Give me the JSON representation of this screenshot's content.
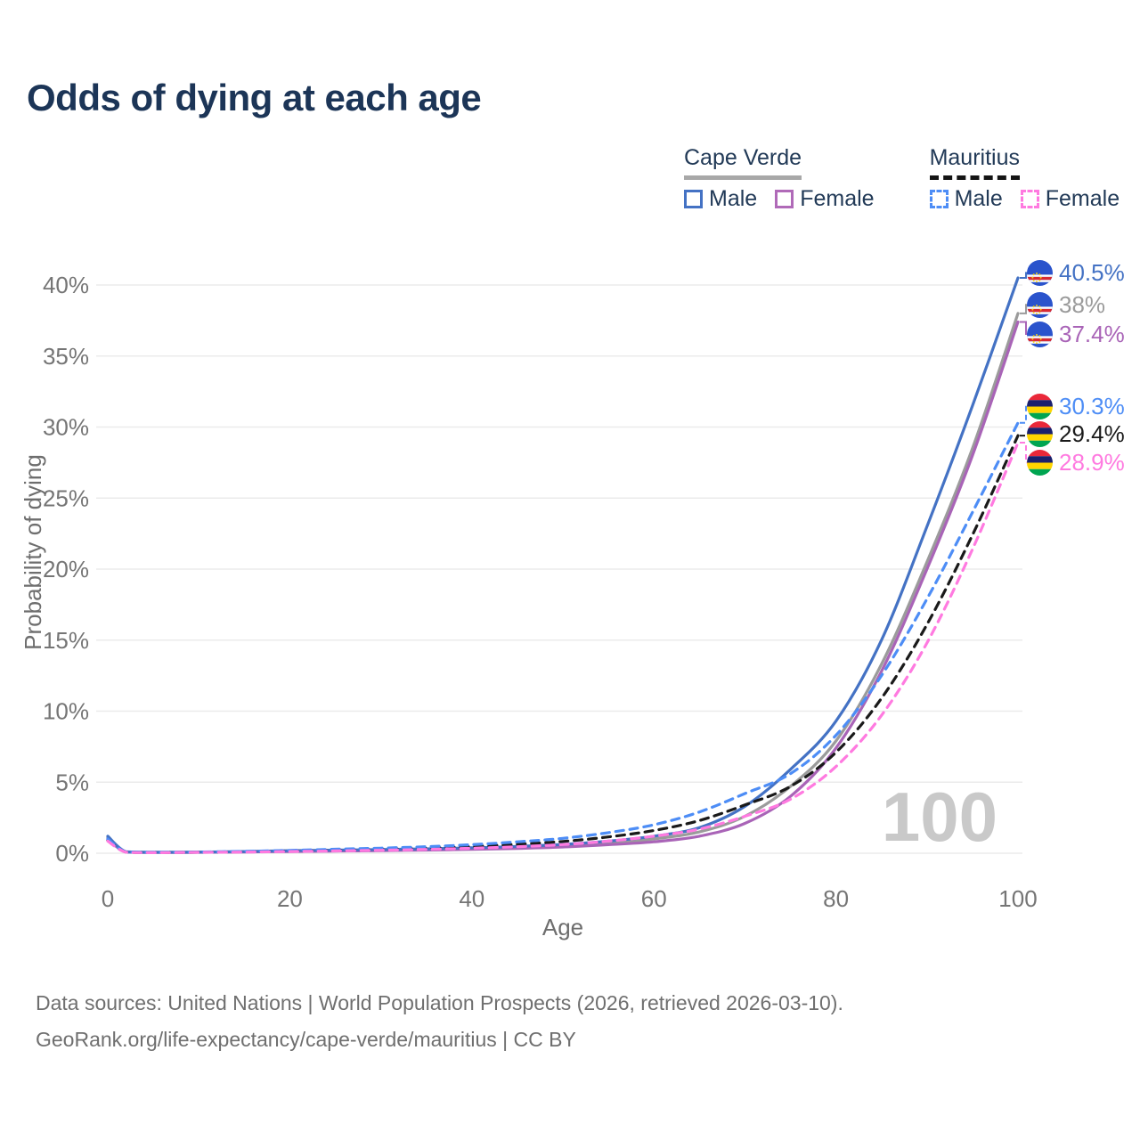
{
  "header": {
    "title": "Odds of dying at each age"
  },
  "legend": {
    "groups": [
      {
        "name": "Cape Verde",
        "style": "solid",
        "male": "Male",
        "female": "Female"
      },
      {
        "name": "Mauritius",
        "style": "dashed",
        "male": "Male",
        "female": "Female"
      }
    ]
  },
  "watermark": "100",
  "footer": {
    "line1": "Data sources: United Nations | World Population Prospects (2026, retrieved 2026-03-10).",
    "line2": "GeoRank.org/life-expectancy/cape-verde/mauritius | CC BY"
  },
  "colors": {
    "title_text": "#1c3557",
    "tick_text": "#757575",
    "axis_title_text": "#6e6e6e",
    "gridline": "#ebebeb",
    "watermark": "#c9c9c9",
    "footer_text": "#6f6f6f",
    "cape_verde_underline": "#a8a8a8",
    "mauritius_underline": "#141414"
  },
  "chart_data": {
    "type": "line",
    "title": "Odds of dying at each age",
    "xlabel": "Age",
    "ylabel": "Probability of dying",
    "xlim": [
      0,
      100
    ],
    "ylim": [
      0,
      41
    ],
    "grid": true,
    "legend_position": "top-right",
    "x_ticks": [
      0,
      20,
      40,
      60,
      80,
      100
    ],
    "y_ticks": [
      {
        "value": 0,
        "label": "0%"
      },
      {
        "value": 5,
        "label": "5%"
      },
      {
        "value": 10,
        "label": "10%"
      },
      {
        "value": 15,
        "label": "15%"
      },
      {
        "value": 20,
        "label": "20%"
      },
      {
        "value": 25,
        "label": "25%"
      },
      {
        "value": 30,
        "label": "30%"
      },
      {
        "value": 35,
        "label": "35%"
      },
      {
        "value": 40,
        "label": "40%"
      }
    ],
    "x": [
      0,
      2,
      5,
      10,
      15,
      20,
      25,
      30,
      35,
      40,
      45,
      50,
      55,
      60,
      65,
      70,
      75,
      80,
      85,
      90,
      95,
      100
    ],
    "series": [
      {
        "name": "Cape Verde Total",
        "country": "Cape Verde",
        "sex": "Total",
        "style": "solid",
        "color": "#9b9b9b",
        "flag": "cape-verde",
        "end_label": "38%",
        "end_label_color": "#9b9b9b",
        "label_y_pct": 38.6,
        "values": [
          1.1,
          0.09,
          0.06,
          0.07,
          0.1,
          0.15,
          0.18,
          0.22,
          0.26,
          0.32,
          0.41,
          0.53,
          0.72,
          1.0,
          1.5,
          2.6,
          4.7,
          7.9,
          13.3,
          20.5,
          28.5,
          38.0
        ]
      },
      {
        "name": "Cape Verde Female",
        "country": "Cape Verde",
        "sex": "Female",
        "style": "solid",
        "color": "#a964b7",
        "flag": "cape-verde",
        "end_label": "37.4%",
        "end_label_color": "#a964b7",
        "label_y_pct": 36.55,
        "values": [
          1.0,
          0.08,
          0.05,
          0.06,
          0.09,
          0.12,
          0.15,
          0.18,
          0.22,
          0.27,
          0.34,
          0.44,
          0.6,
          0.8,
          1.2,
          2.1,
          4.0,
          7.4,
          12.8,
          20.0,
          28.0,
          37.4
        ]
      },
      {
        "name": "Cape Verde Male",
        "country": "Cape Verde",
        "sex": "Male",
        "style": "solid",
        "color": "#4472c4",
        "flag": "cape-verde",
        "end_label": "40.5%",
        "end_label_color": "#4472c4",
        "label_y_pct": 40.85,
        "values": [
          1.2,
          0.1,
          0.07,
          0.08,
          0.12,
          0.18,
          0.22,
          0.26,
          0.31,
          0.38,
          0.48,
          0.62,
          0.85,
          1.2,
          1.8,
          3.3,
          5.9,
          9.3,
          15.0,
          23.0,
          31.5,
          40.5
        ]
      },
      {
        "name": "Mauritius Total",
        "country": "Mauritius",
        "sex": "Total",
        "style": "dashed",
        "color": "#1a1a1a",
        "flag": "mauritius",
        "end_label": "29.4%",
        "end_label_color": "#1a1a1a",
        "label_y_pct": 29.5,
        "values": [
          0.9,
          0.08,
          0.05,
          0.07,
          0.1,
          0.16,
          0.22,
          0.28,
          0.36,
          0.47,
          0.63,
          0.83,
          1.15,
          1.6,
          2.3,
          3.4,
          4.7,
          7.1,
          10.9,
          16.1,
          22.4,
          29.4
        ]
      },
      {
        "name": "Mauritius Male",
        "country": "Mauritius",
        "sex": "Male",
        "style": "dashed",
        "color": "#4d8df6",
        "flag": "mauritius",
        "end_label": "30.3%",
        "end_label_color": "#4d8df6",
        "label_y_pct": 31.5,
        "values": [
          1.0,
          0.09,
          0.06,
          0.08,
          0.13,
          0.2,
          0.28,
          0.36,
          0.46,
          0.6,
          0.8,
          1.05,
          1.45,
          2.0,
          2.9,
          4.2,
          5.6,
          8.3,
          12.5,
          17.9,
          24.0,
          30.3
        ]
      },
      {
        "name": "Mauritius Female",
        "country": "Mauritius",
        "sex": "Female",
        "style": "dashed",
        "color": "#ff7ae0",
        "flag": "mauritius",
        "end_label": "28.9%",
        "end_label_color": "#ff7ae0",
        "label_y_pct": 27.5,
        "values": [
          0.85,
          0.07,
          0.04,
          0.06,
          0.08,
          0.12,
          0.16,
          0.21,
          0.27,
          0.35,
          0.46,
          0.61,
          0.85,
          1.2,
          1.7,
          2.6,
          3.8,
          6.1,
          9.7,
          14.8,
          21.4,
          28.9
        ]
      }
    ]
  }
}
